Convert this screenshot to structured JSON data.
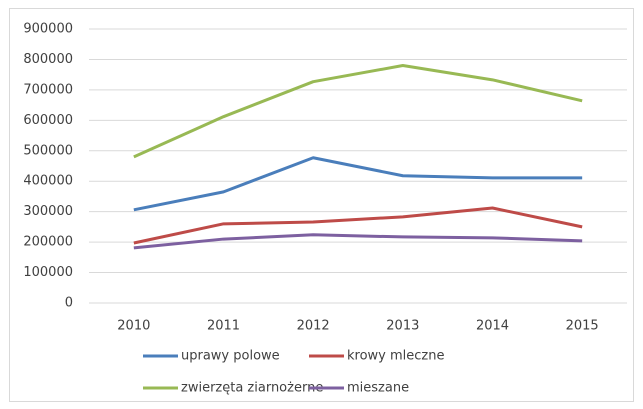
{
  "chart_data": {
    "type": "line",
    "categories": [
      "2010",
      "2011",
      "2012",
      "2013",
      "2014",
      "2015"
    ],
    "series": [
      {
        "name": "uprawy polowe",
        "color": "#4a7ebb",
        "values": [
          306000,
          365000,
          477000,
          418000,
          411000,
          411000
        ]
      },
      {
        "name": "krowy mleczne",
        "color": "#be4b48",
        "values": [
          197000,
          260000,
          266000,
          283000,
          312000,
          250000
        ]
      },
      {
        "name": "zwierzęta ziarnożerne",
        "color": "#98b954",
        "values": [
          480000,
          612000,
          727000,
          780000,
          733000,
          664000
        ]
      },
      {
        "name": "mieszane",
        "color": "#7d60a0",
        "values": [
          181000,
          210000,
          224000,
          217000,
          214000,
          204000
        ]
      }
    ],
    "ylim": [
      0,
      900000
    ],
    "yticks": [
      0,
      100000,
      200000,
      300000,
      400000,
      500000,
      600000,
      700000,
      800000,
      900000
    ],
    "grid": true,
    "legend": "bottom"
  }
}
